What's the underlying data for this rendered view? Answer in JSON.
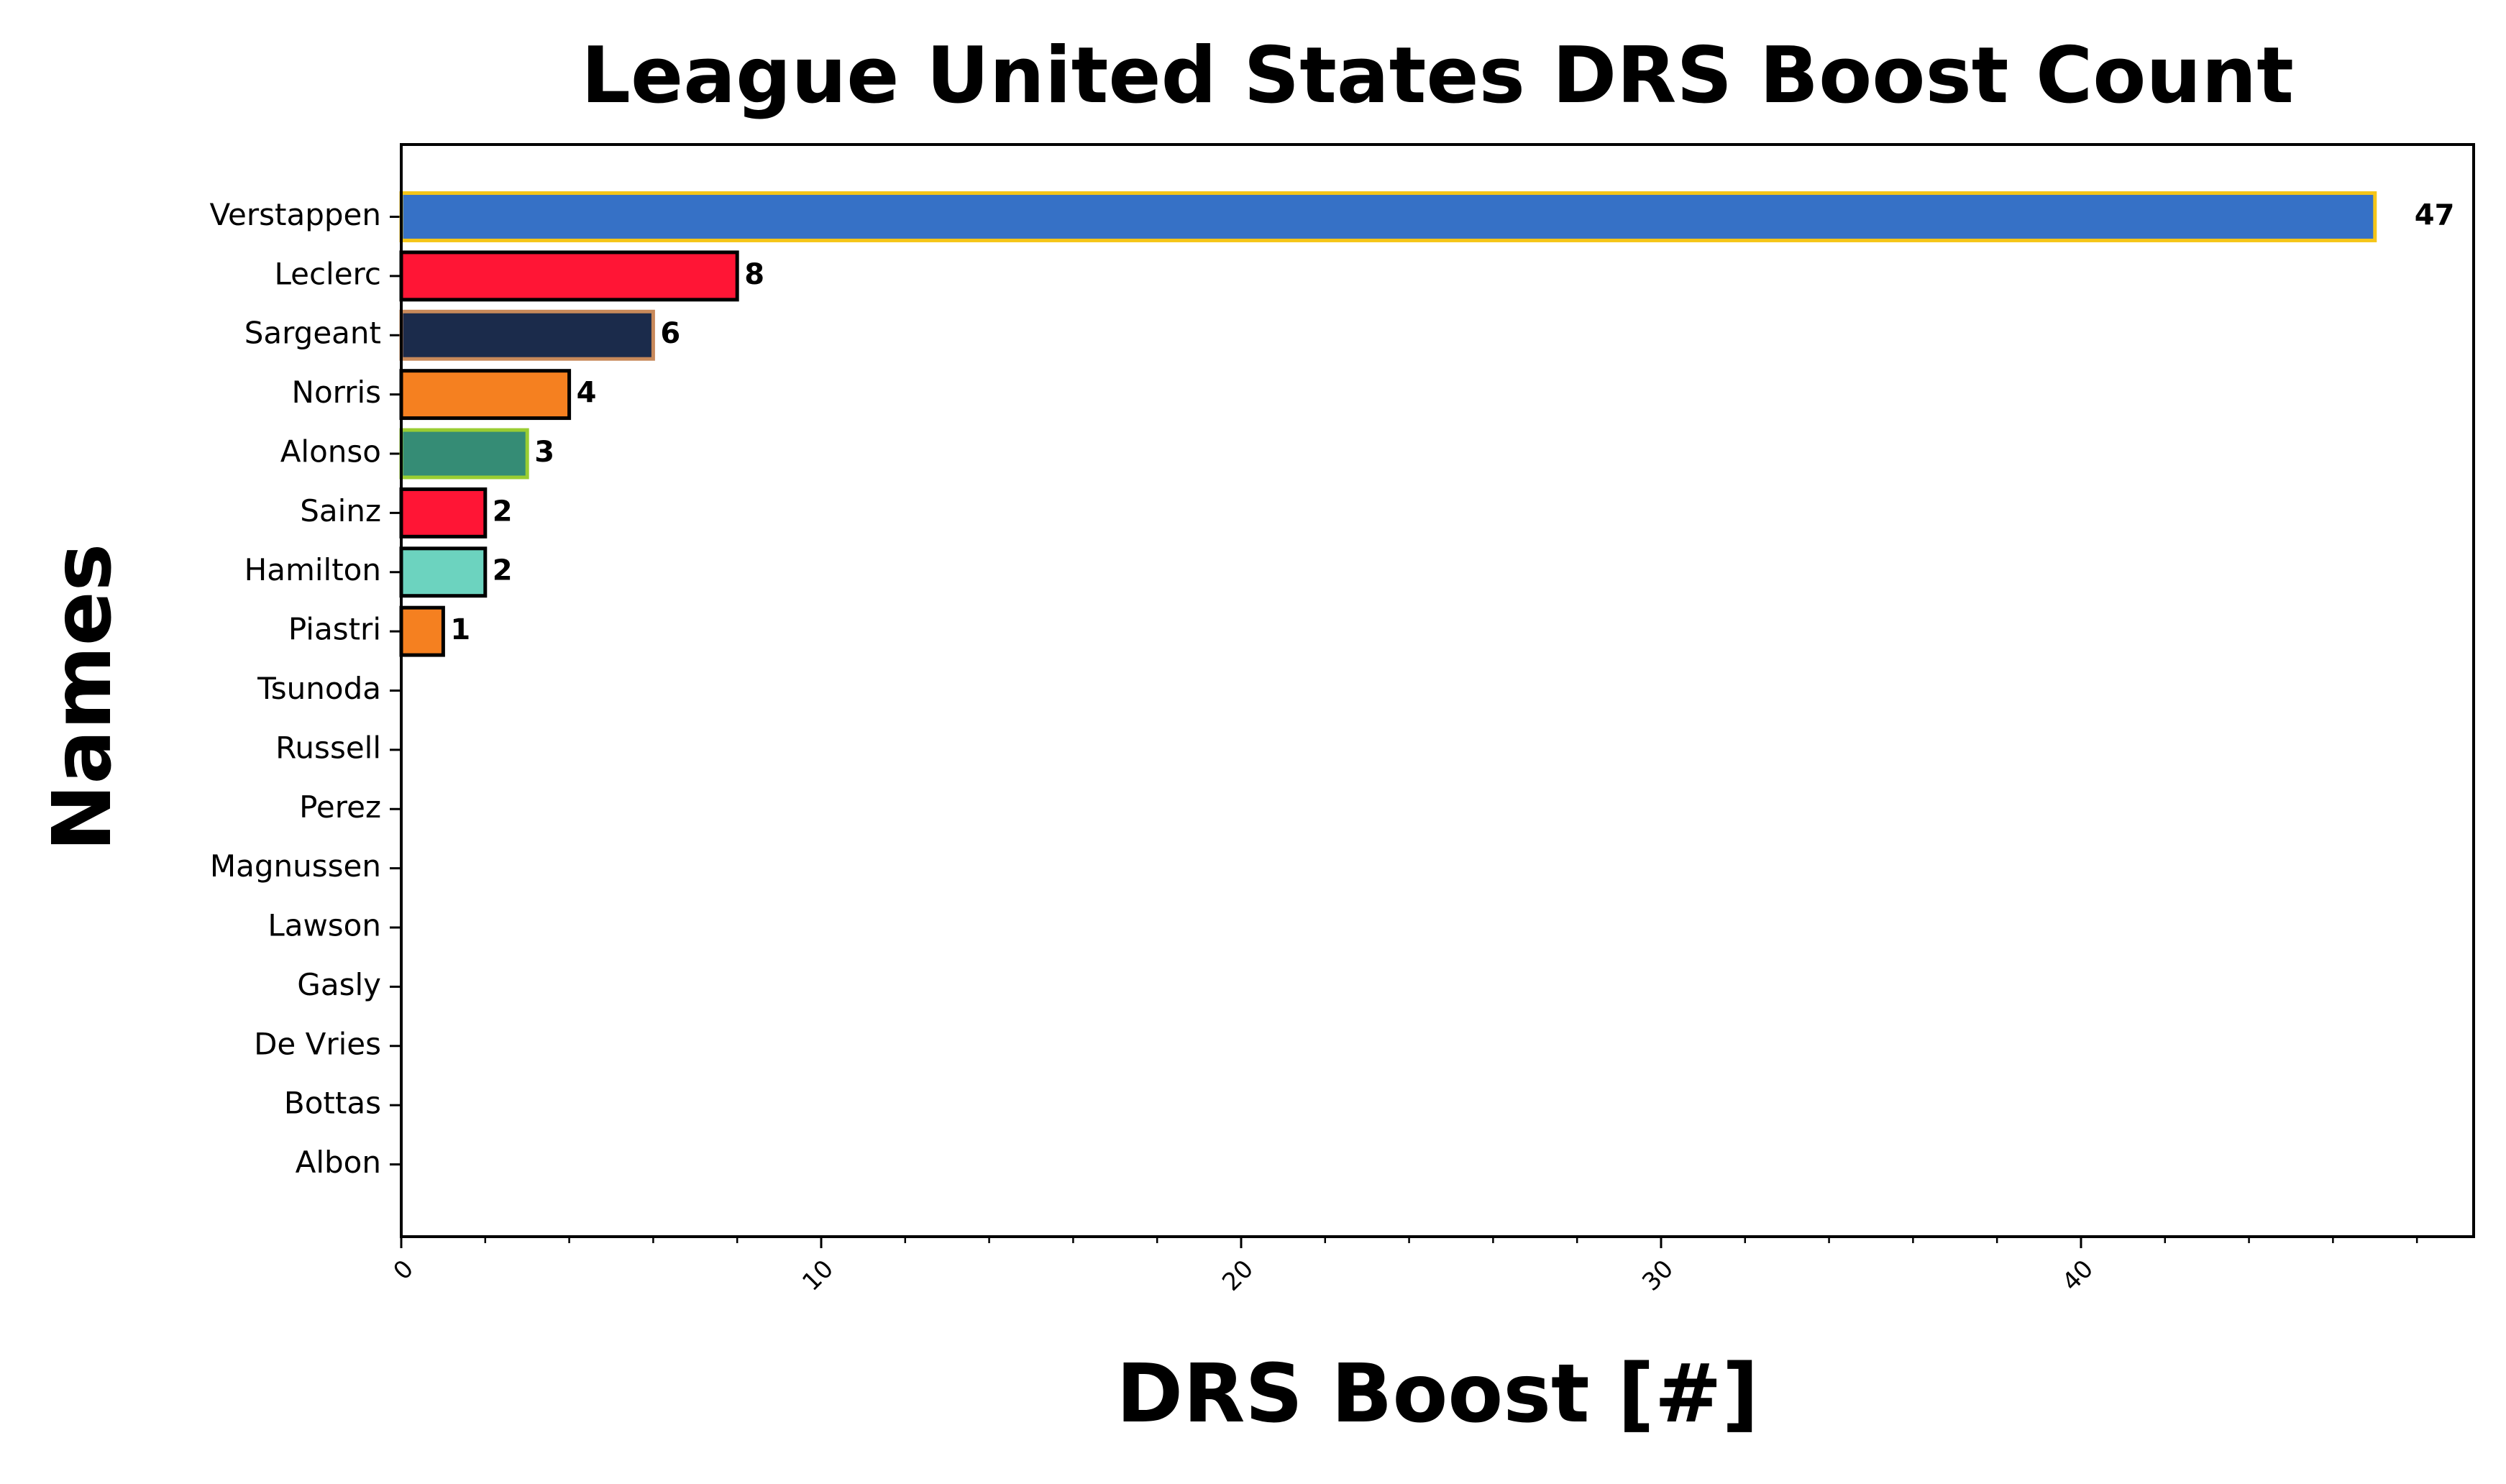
{
  "chart_data": {
    "type": "barh",
    "title": "League United States DRS Boost Count",
    "xlabel": "DRS Boost [#]",
    "ylabel": "Names",
    "categories": [
      "Verstappen",
      "Leclerc",
      "Sargeant",
      "Norris",
      "Alonso",
      "Sainz",
      "Hamilton",
      "Piastri",
      "Tsunoda",
      "Russell",
      "Perez",
      "Magnussen",
      "Lawson",
      "Gasly",
      "De Vries",
      "Bottas",
      "Albon"
    ],
    "values": [
      47,
      8,
      6,
      4,
      3,
      2,
      2,
      1,
      0,
      0,
      0,
      0,
      0,
      0,
      0,
      0,
      0
    ],
    "colors": [
      "#3671c6",
      "#ff1535",
      "#1b2b4b",
      "#f58020",
      "#358c75",
      "#ff1535",
      "#6cd3bf",
      "#f58020",
      "#1e3c6e",
      "#6cd3bf",
      "#3671c6",
      "#b6babd",
      "#1e3c6e",
      "#2293d1",
      "#1e3c6e",
      "#52e252",
      "#37bedd"
    ],
    "edgecolors": [
      "#f5c518",
      "#000000",
      "#c8895a",
      "#000000",
      "#9acd32",
      "#000000",
      "#000000",
      "#000000",
      "#000000",
      "#000000",
      "#000000",
      "#000000",
      "#000000",
      "#000000",
      "#000000",
      "#000000",
      "#000000"
    ],
    "xlim": [
      0,
      49.35
    ],
    "xticks": [
      0,
      10,
      20,
      30,
      40
    ],
    "xminorticks": [
      2,
      4,
      6,
      8,
      12,
      14,
      16,
      18,
      22,
      24,
      26,
      28,
      32,
      34,
      36,
      38,
      42,
      44,
      46,
      48
    ]
  }
}
